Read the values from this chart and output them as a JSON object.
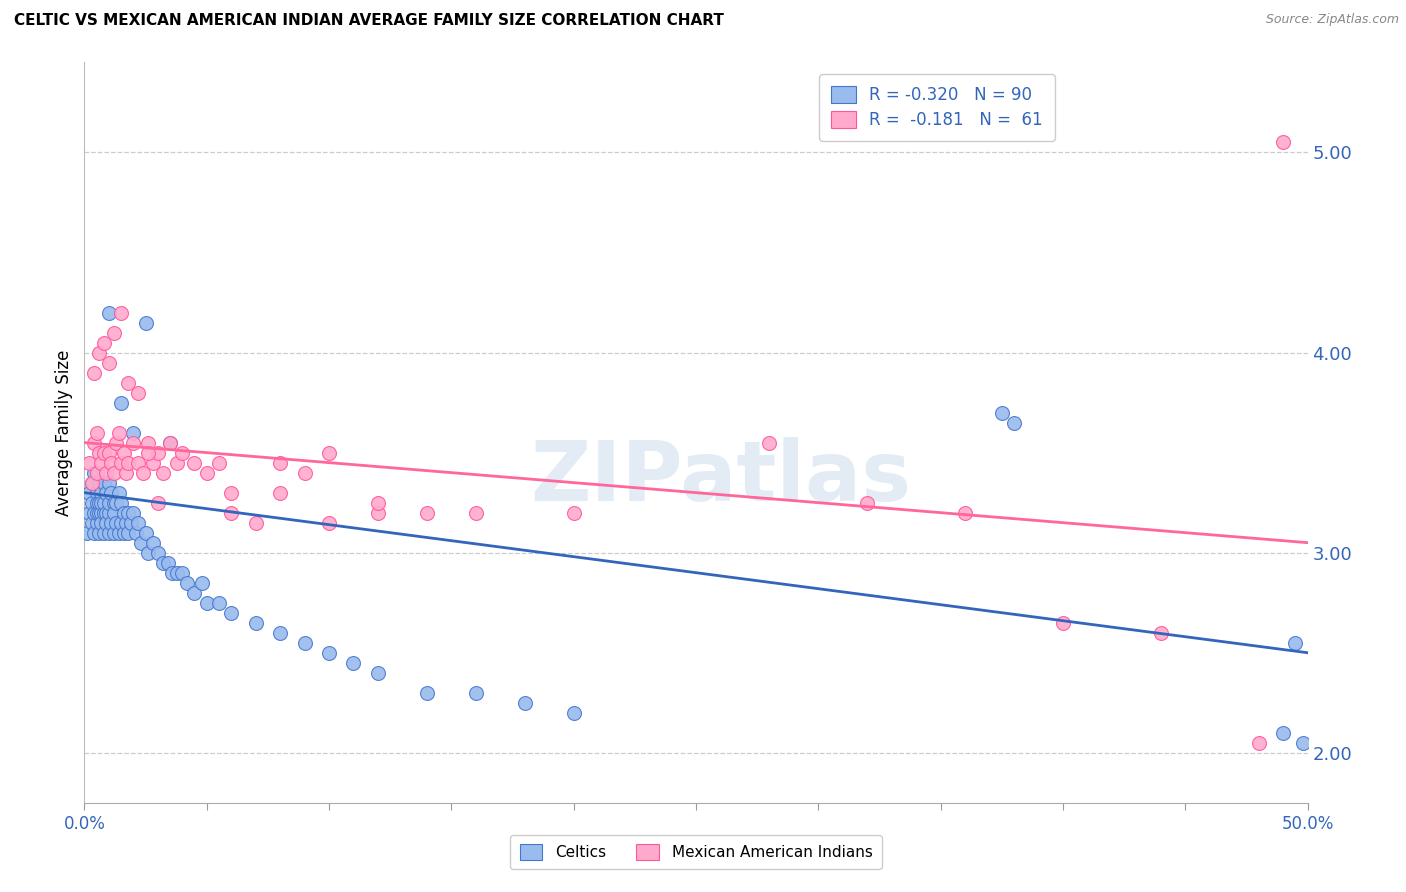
{
  "title": "CELTIC VS MEXICAN AMERICAN INDIAN AVERAGE FAMILY SIZE CORRELATION CHART",
  "source": "Source: ZipAtlas.com",
  "ylabel": "Average Family Size",
  "right_yticks": [
    2.0,
    3.0,
    4.0,
    5.0
  ],
  "xlim": [
    0.0,
    0.5
  ],
  "ylim": [
    1.75,
    5.45
  ],
  "watermark": "ZIPatlas",
  "legend_line1": "R = -0.320   N = 90",
  "legend_line2": "R =  -0.181   N =  61",
  "blue_color": "#99BBEE",
  "pink_color": "#FFAACC",
  "blue_edge_color": "#4477CC",
  "pink_edge_color": "#FF5599",
  "blue_line_color": "#3366BB",
  "pink_line_color": "#FF6699",
  "right_tick_color": "#3366BB",
  "celtics_scatter_x": [
    0.001,
    0.002,
    0.002,
    0.003,
    0.003,
    0.003,
    0.004,
    0.004,
    0.004,
    0.005,
    0.005,
    0.005,
    0.005,
    0.006,
    0.006,
    0.006,
    0.006,
    0.007,
    0.007,
    0.007,
    0.007,
    0.008,
    0.008,
    0.008,
    0.008,
    0.009,
    0.009,
    0.009,
    0.01,
    0.01,
    0.01,
    0.01,
    0.011,
    0.011,
    0.012,
    0.012,
    0.012,
    0.013,
    0.013,
    0.014,
    0.014,
    0.015,
    0.015,
    0.016,
    0.016,
    0.017,
    0.018,
    0.018,
    0.019,
    0.02,
    0.021,
    0.022,
    0.023,
    0.025,
    0.026,
    0.028,
    0.03,
    0.032,
    0.034,
    0.036,
    0.038,
    0.04,
    0.042,
    0.045,
    0.048,
    0.05,
    0.055,
    0.06,
    0.07,
    0.08,
    0.09,
    0.1,
    0.11,
    0.12,
    0.14,
    0.16,
    0.18,
    0.2,
    0.01,
    0.015,
    0.02,
    0.025,
    0.035,
    0.375,
    0.38,
    0.49,
    0.495,
    0.498
  ],
  "celtics_scatter_y": [
    3.1,
    3.3,
    3.2,
    3.35,
    3.15,
    3.25,
    3.4,
    3.1,
    3.2,
    3.3,
    3.15,
    3.25,
    3.2,
    3.35,
    3.2,
    3.1,
    3.25,
    3.3,
    3.2,
    3.15,
    3.25,
    3.35,
    3.2,
    3.1,
    3.25,
    3.3,
    3.2,
    3.15,
    3.35,
    3.2,
    3.1,
    3.25,
    3.3,
    3.15,
    3.25,
    3.1,
    3.2,
    3.25,
    3.15,
    3.3,
    3.1,
    3.25,
    3.15,
    3.2,
    3.1,
    3.15,
    3.2,
    3.1,
    3.15,
    3.2,
    3.1,
    3.15,
    3.05,
    3.1,
    3.0,
    3.05,
    3.0,
    2.95,
    2.95,
    2.9,
    2.9,
    2.9,
    2.85,
    2.8,
    2.85,
    2.75,
    2.75,
    2.7,
    2.65,
    2.6,
    2.55,
    2.5,
    2.45,
    2.4,
    2.3,
    2.3,
    2.25,
    2.2,
    4.2,
    3.75,
    3.6,
    4.15,
    3.55,
    3.7,
    3.65,
    2.1,
    2.55,
    2.05
  ],
  "mexican_scatter_x": [
    0.002,
    0.003,
    0.004,
    0.005,
    0.005,
    0.006,
    0.007,
    0.008,
    0.009,
    0.01,
    0.011,
    0.012,
    0.013,
    0.014,
    0.015,
    0.016,
    0.017,
    0.018,
    0.02,
    0.022,
    0.024,
    0.026,
    0.028,
    0.03,
    0.032,
    0.035,
    0.038,
    0.04,
    0.045,
    0.05,
    0.055,
    0.06,
    0.07,
    0.08,
    0.09,
    0.1,
    0.12,
    0.14,
    0.16,
    0.2,
    0.004,
    0.006,
    0.008,
    0.01,
    0.012,
    0.015,
    0.018,
    0.022,
    0.026,
    0.03,
    0.06,
    0.08,
    0.1,
    0.12,
    0.28,
    0.32,
    0.36,
    0.4,
    0.44,
    0.48,
    0.49
  ],
  "mexican_scatter_y": [
    3.45,
    3.35,
    3.55,
    3.6,
    3.4,
    3.5,
    3.45,
    3.5,
    3.4,
    3.5,
    3.45,
    3.4,
    3.55,
    3.6,
    3.45,
    3.5,
    3.4,
    3.45,
    3.55,
    3.45,
    3.4,
    3.55,
    3.45,
    3.5,
    3.4,
    3.55,
    3.45,
    3.5,
    3.45,
    3.4,
    3.45,
    3.2,
    3.15,
    3.45,
    3.4,
    3.15,
    3.2,
    3.2,
    3.2,
    3.2,
    3.9,
    4.0,
    4.05,
    3.95,
    4.1,
    4.2,
    3.85,
    3.8,
    3.5,
    3.25,
    3.3,
    3.3,
    3.5,
    3.25,
    3.55,
    3.25,
    3.2,
    2.65,
    2.6,
    2.05,
    5.05
  ],
  "blue_trend_x": [
    0.0,
    0.5
  ],
  "blue_trend_y": [
    3.3,
    2.5
  ],
  "pink_trend_x": [
    0.0,
    0.5
  ],
  "pink_trend_y": [
    3.55,
    3.05
  ],
  "xticks": [
    0.0,
    0.05,
    0.1,
    0.15,
    0.2,
    0.25,
    0.3,
    0.35,
    0.4,
    0.45,
    0.5
  ]
}
